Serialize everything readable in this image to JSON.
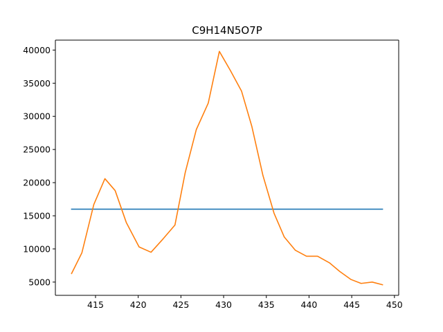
{
  "chart_data": {
    "type": "line",
    "title": "C9H14N5O7P",
    "xlabel": "",
    "ylabel": "",
    "xlim": [
      410.3,
      450.5
    ],
    "ylim": [
      3000,
      41500
    ],
    "xticks": [
      415,
      420,
      425,
      430,
      435,
      440,
      445,
      450
    ],
    "yticks": [
      5000,
      10000,
      15000,
      20000,
      25000,
      30000,
      35000,
      40000
    ],
    "grid": false,
    "series": [
      {
        "color": "#1f77b4",
        "x": [
          412.2,
          448.6
        ],
        "y": [
          16000,
          16000
        ]
      },
      {
        "color": "#ff7f0e",
        "x": [
          412.2,
          413.4,
          414.8,
          416.1,
          417.3,
          418.6,
          420.1,
          421.5,
          422.9,
          424.3,
          425.5,
          426.8,
          428.2,
          429.5,
          430.8,
          432.1,
          433.3,
          434.6,
          435.9,
          437.1,
          438.4,
          439.7,
          441.0,
          442.4,
          443.6,
          444.9,
          446.1,
          447.4,
          448.6
        ],
        "y": [
          6300,
          9400,
          16700,
          20600,
          18800,
          14000,
          10300,
          9500,
          11500,
          13600,
          21500,
          28000,
          32000,
          39800,
          36900,
          33800,
          28500,
          21100,
          15400,
          11800,
          9800,
          8900,
          8900,
          7900,
          6600,
          5400,
          4800,
          5000,
          4600
        ]
      }
    ]
  }
}
